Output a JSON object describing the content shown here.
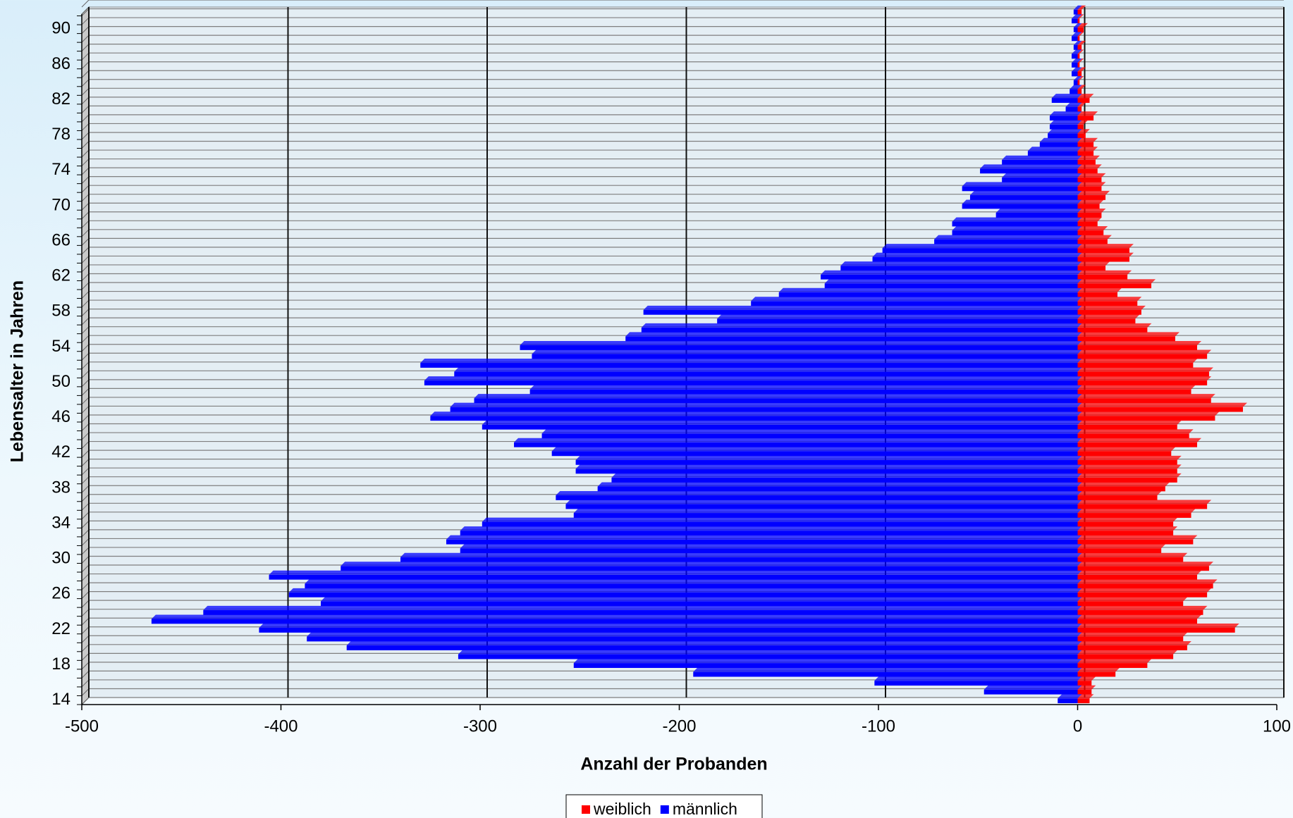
{
  "chart_data": {
    "type": "bar",
    "orientation": "horizontal",
    "x_label": "Anzahl der Probanden",
    "y_label": "Lebensalter in Jahren",
    "categories": [
      "14",
      null,
      null,
      null,
      "18",
      null,
      null,
      null,
      "22",
      null,
      null,
      null,
      "26",
      null,
      null,
      null,
      "30",
      null,
      null,
      null,
      "34",
      null,
      null,
      null,
      "38",
      null,
      null,
      null,
      "42",
      null,
      null,
      null,
      "46",
      null,
      null,
      null,
      "50",
      null,
      null,
      null,
      "54",
      null,
      null,
      null,
      "58",
      null,
      null,
      null,
      "62",
      null,
      null,
      null,
      "66",
      null,
      null,
      null,
      "70",
      null,
      null,
      null,
      "74",
      null,
      null,
      null,
      "78",
      null,
      null,
      null,
      "82",
      null,
      null,
      null,
      "86",
      null,
      null,
      null,
      "90",
      null,
      null
    ],
    "series": [
      {
        "name": "weiblich",
        "color": "#ff0000",
        "values": [
          6,
          7,
          7,
          19,
          35,
          48,
          55,
          53,
          79,
          60,
          63,
          53,
          65,
          68,
          60,
          66,
          53,
          42,
          58,
          48,
          48,
          57,
          65,
          40,
          44,
          50,
          50,
          50,
          47,
          60,
          56,
          50,
          69,
          83,
          67,
          57,
          65,
          66,
          58,
          65,
          60,
          49,
          35,
          29,
          32,
          30,
          20,
          37,
          25,
          14,
          26,
          26,
          15,
          13,
          10,
          12,
          11,
          14,
          12,
          12,
          10,
          9,
          8,
          8,
          4,
          3,
          8,
          2,
          6,
          2,
          1,
          2,
          1,
          1,
          2,
          1,
          3,
          1,
          2
        ]
      },
      {
        "name": "männlich",
        "color": "#0000ff",
        "values": [
          -10,
          -47,
          -102,
          -193,
          -253,
          -311,
          -367,
          -387,
          -411,
          -465,
          -439,
          -380,
          -396,
          -388,
          -406,
          -370,
          -340,
          -310,
          -317,
          -310,
          -299,
          -253,
          -257,
          -262,
          -241,
          -234,
          -252,
          -252,
          -264,
          -283,
          -269,
          -299,
          -325,
          -315,
          -303,
          -275,
          -328,
          -313,
          -330,
          -274,
          -280,
          -227,
          -219,
          -181,
          -218,
          -164,
          -150,
          -127,
          -129,
          -119,
          -103,
          -98,
          -72,
          -63,
          -63,
          -41,
          -58,
          -54,
          -58,
          -38,
          -49,
          -38,
          -25,
          -19,
          -15,
          -14,
          -14,
          -6,
          -13,
          -4,
          -2,
          -3,
          -3,
          -3,
          -2,
          -3,
          -2,
          -3,
          -2
        ]
      }
    ],
    "xlim": [
      -500,
      100
    ],
    "xticks": [
      -500,
      -400,
      -300,
      -200,
      -100,
      0,
      100
    ],
    "grid": true,
    "legend": "bottom"
  }
}
